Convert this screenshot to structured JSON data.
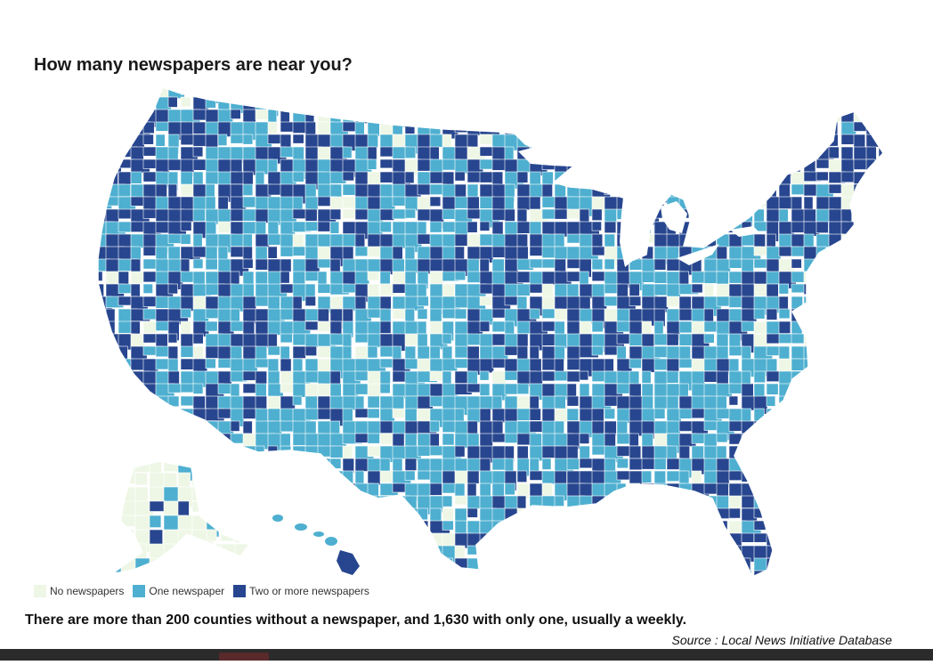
{
  "title": "How many newspapers are near you?",
  "legend": [
    {
      "label": "No newspapers",
      "color": "#eef7e6"
    },
    {
      "label": "One newspaper",
      "color": "#4eafd0"
    },
    {
      "label": "Two or more newspapers",
      "color": "#27468f"
    }
  ],
  "caption": "There are more than 200 counties without a newspaper, and 1,630 with only one, usually a weekly.",
  "source": "Source : Local News Initiative Database",
  "colors": {
    "none": "#eef7e6",
    "one": "#4eafd0",
    "two_plus": "#27468f",
    "border": "#ffffff"
  }
}
